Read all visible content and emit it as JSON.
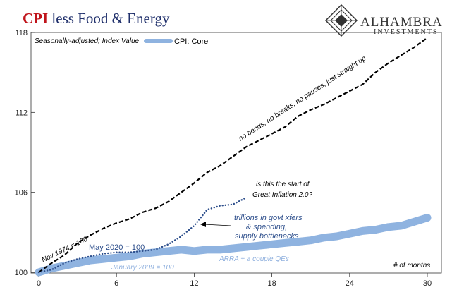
{
  "title": {
    "part1": "CPI",
    "part2": " less Food & Energy",
    "color_red": "#c0141b",
    "color_dark": "#1f2f6b"
  },
  "logo": {
    "name": "ALHAMBRA",
    "sub": "INVESTMENTS"
  },
  "subtitle": "Seasonally-adjusted; Index Value",
  "legend": {
    "label": "CPI: Core",
    "color": "#8fb3e0"
  },
  "annotations": {
    "straight_up": "no bends, no breaks, no pauses; just straight up",
    "start_line1": "is this the start of",
    "start_line2": "Great Inflation 2.0?",
    "trillions_line1": "trillions in govt xfers",
    "trillions_line2": "& spending,",
    "trillions_line3": "supply bottlenecks",
    "arra": "ARRA + a couple QEs",
    "months": "# of months"
  },
  "chart_data": {
    "type": "line",
    "xlabel": "# of months",
    "ylabel": "",
    "xlim": [
      0,
      30
    ],
    "ylim": [
      100,
      118
    ],
    "x_ticks": [
      0,
      6,
      12,
      18,
      24,
      30
    ],
    "y_ticks": [
      100,
      106,
      112,
      118
    ],
    "grid": false,
    "series": [
      {
        "name": "Nov 1974 = 100",
        "style": "dashed",
        "color": "#000000",
        "values": [
          [
            0,
            100.0
          ],
          [
            1,
            100.7
          ],
          [
            2,
            101.3
          ],
          [
            3,
            102.2
          ],
          [
            4,
            102.8
          ],
          [
            5,
            103.3
          ],
          [
            6,
            103.7
          ],
          [
            7,
            104.0
          ],
          [
            8,
            104.5
          ],
          [
            9,
            104.8
          ],
          [
            10,
            105.3
          ],
          [
            11,
            106.0
          ],
          [
            12,
            106.7
          ],
          [
            13,
            107.5
          ],
          [
            14,
            108.0
          ],
          [
            15,
            108.7
          ],
          [
            16,
            109.4
          ],
          [
            17,
            109.9
          ],
          [
            18,
            110.4
          ],
          [
            19,
            110.9
          ],
          [
            20,
            111.7
          ],
          [
            21,
            112.2
          ],
          [
            22,
            112.6
          ],
          [
            23,
            113.1
          ],
          [
            24,
            113.6
          ],
          [
            25,
            114.1
          ],
          [
            26,
            115.0
          ],
          [
            27,
            115.7
          ],
          [
            28,
            116.3
          ],
          [
            29,
            116.9
          ],
          [
            30,
            117.6
          ]
        ]
      },
      {
        "name": "May 2020 = 100",
        "style": "dotted",
        "color": "#2e4f8c",
        "values": [
          [
            0,
            100.0
          ],
          [
            1,
            100.2
          ],
          [
            2,
            100.7
          ],
          [
            3,
            101.0
          ],
          [
            4,
            101.2
          ],
          [
            5,
            101.4
          ],
          [
            6,
            101.5
          ],
          [
            7,
            101.5
          ],
          [
            8,
            101.6
          ],
          [
            9,
            101.7
          ],
          [
            10,
            102.1
          ],
          [
            11,
            102.7
          ],
          [
            12,
            103.5
          ],
          [
            13,
            104.7
          ],
          [
            14,
            105.0
          ],
          [
            15,
            105.1
          ],
          [
            16,
            105.6
          ]
        ]
      },
      {
        "name": "January 2009 = 100",
        "style": "thick",
        "color": "#8fb3e0",
        "values": [
          [
            0,
            100.0
          ],
          [
            1,
            100.3
          ],
          [
            2,
            100.5
          ],
          [
            3,
            100.7
          ],
          [
            4,
            100.9
          ],
          [
            5,
            101.0
          ],
          [
            6,
            101.1
          ],
          [
            7,
            101.2
          ],
          [
            8,
            101.4
          ],
          [
            9,
            101.5
          ],
          [
            10,
            101.6
          ],
          [
            11,
            101.7
          ],
          [
            12,
            101.6
          ],
          [
            13,
            101.7
          ],
          [
            14,
            101.7
          ],
          [
            15,
            101.8
          ],
          [
            16,
            101.9
          ],
          [
            17,
            102.0
          ],
          [
            18,
            102.1
          ],
          [
            19,
            102.2
          ],
          [
            20,
            102.3
          ],
          [
            21,
            102.4
          ],
          [
            22,
            102.6
          ],
          [
            23,
            102.7
          ],
          [
            24,
            102.9
          ],
          [
            25,
            103.1
          ],
          [
            26,
            103.2
          ],
          [
            27,
            103.4
          ],
          [
            28,
            103.5
          ],
          [
            29,
            103.8
          ],
          [
            30,
            104.1
          ]
        ]
      }
    ]
  }
}
